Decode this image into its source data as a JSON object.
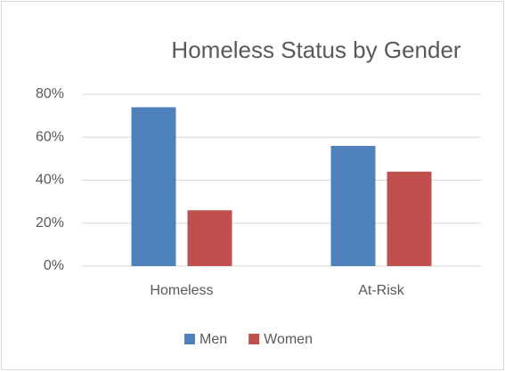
{
  "chart_data": {
    "type": "bar",
    "title": "Homeless Status by Gender",
    "categories": [
      "Homeless",
      "At-Risk"
    ],
    "series": [
      {
        "name": "Men",
        "color": "#4f81bd",
        "values": [
          74,
          56
        ]
      },
      {
        "name": "Women",
        "color": "#c0504d",
        "values": [
          26,
          44
        ]
      }
    ],
    "ylim": [
      0,
      80
    ],
    "yticks": [
      {
        "value": 0,
        "label": "0%"
      },
      {
        "value": 20,
        "label": "20%"
      },
      {
        "value": 40,
        "label": "40%"
      },
      {
        "value": 60,
        "label": "60%"
      },
      {
        "value": 80,
        "label": "80%"
      }
    ],
    "grid": true,
    "legend": "bottom"
  }
}
